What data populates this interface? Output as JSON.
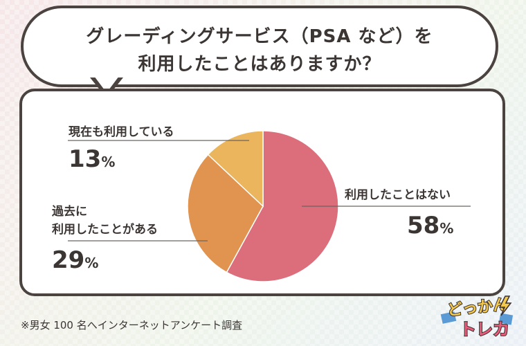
{
  "title": {
    "line1": "グレーディングサービス（PSA など）を",
    "line2": "利用したことはありますか？"
  },
  "chart_data": {
    "type": "pie",
    "slices": [
      {
        "label": "利用したことはない",
        "value": 58,
        "display": "58",
        "unit": "%",
        "color": "#dc6d7a"
      },
      {
        "label_lines": [
          "過去に",
          "利用したことがある"
        ],
        "value": 29,
        "display": "29",
        "unit": "%",
        "color": "#e0944f"
      },
      {
        "label": "現在も利用している",
        "value": 13,
        "display": "13",
        "unit": "%",
        "color": "#eab55d"
      }
    ]
  },
  "footnote": "※男女 100 名へインターネットアンケート調査",
  "logo": {
    "line1": "どっかん",
    "line2": "トレカ"
  },
  "colors": {
    "outline": "#4a4340",
    "text": "#3b3533"
  }
}
